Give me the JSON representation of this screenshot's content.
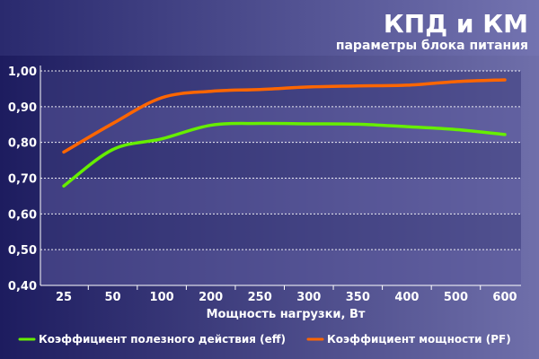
{
  "header": {
    "title": "КПД и КМ",
    "subtitle": "параметры блока питания"
  },
  "chart_data": {
    "type": "line",
    "title": "КПД и КМ",
    "subtitle": "параметры блока питания",
    "xlabel": "Мощность нагрузки, Вт",
    "ylabel": "",
    "categories": [
      "25",
      "50",
      "100",
      "200",
      "250",
      "300",
      "350",
      "400",
      "500",
      "600"
    ],
    "x_ticks": [
      "25",
      "50",
      "100",
      "200",
      "250",
      "300",
      "350",
      "400",
      "500",
      "600"
    ],
    "y_ticks": [
      "0,40",
      "0,50",
      "0,60",
      "0,70",
      "0,80",
      "0,90",
      "1,00"
    ],
    "ylim": [
      0.4,
      1.0
    ],
    "grid": true,
    "legend_position": "bottom",
    "series": [
      {
        "name": "Коэффициент полезного действия (eff)",
        "color": "#66ee00",
        "values": [
          0.678,
          0.78,
          0.81,
          0.848,
          0.853,
          0.852,
          0.851,
          0.844,
          0.836,
          0.822
        ]
      },
      {
        "name": "Коэффициент мощности (PF)",
        "color": "#ff6600",
        "values": [
          0.773,
          0.853,
          0.925,
          0.943,
          0.948,
          0.955,
          0.958,
          0.96,
          0.97,
          0.975
        ]
      }
    ]
  },
  "colors": {
    "background_left": "#1c1b5e",
    "background_right": "#6a6aa6",
    "band_light": "#59589a",
    "band_dark": "#3a3a7c",
    "header_band": "#6d6dad"
  }
}
